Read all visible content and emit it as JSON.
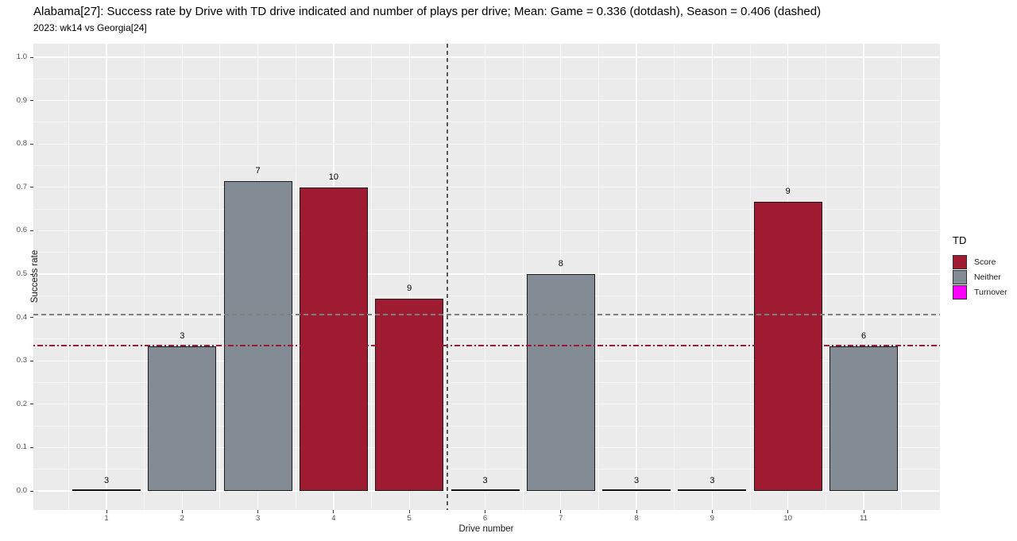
{
  "chart_data": {
    "type": "bar",
    "title": "Alabama[27]: Success rate by Drive with TD drive indicated and number of plays per drive; Mean: Game = 0.336 (dotdash), Season = 0.406 (dashed)",
    "subtitle": "2023: wk14 vs Georgia[24]",
    "xlabel": "Drive number",
    "ylabel": "Success rate",
    "x": [
      1,
      2,
      3,
      4,
      5,
      6,
      7,
      8,
      9,
      10,
      11
    ],
    "values": [
      0,
      0.333,
      0.714,
      0.7,
      0.444,
      0,
      0.5,
      0,
      0,
      0.667,
      0.333
    ],
    "plays_per_drive": [
      3,
      3,
      7,
      10,
      9,
      3,
      8,
      3,
      3,
      9,
      6
    ],
    "td_group": [
      null,
      "Neither",
      "Neither",
      "Score",
      "Score",
      null,
      "Neither",
      null,
      null,
      "Score",
      "Neither"
    ],
    "ylim": [
      0,
      1
    ],
    "y_tick_labels": [
      "0.0",
      "0.1",
      "0.2",
      "0.3",
      "0.4",
      "0.5",
      "0.6",
      "0.7",
      "0.8",
      "0.9",
      "1.0"
    ],
    "x_tick_labels": [
      "1",
      "2",
      "3",
      "4",
      "5",
      "6",
      "7",
      "8",
      "9",
      "10",
      "11"
    ],
    "grid": true,
    "legend_position": "right",
    "ref_lines": [
      {
        "name": "season-mean",
        "orientation": "horizontal",
        "value": 0.406,
        "style": "dashed",
        "color": "#7F7F7F"
      },
      {
        "name": "game-mean",
        "orientation": "horizontal",
        "value": 0.336,
        "style": "dotdash",
        "color": "#9E1B32"
      },
      {
        "name": "half-divider",
        "orientation": "vertical",
        "value": 5.5,
        "style": "dashed",
        "color": "#595959"
      }
    ],
    "colors": {
      "Score": "#9E1B32",
      "Neither": "#838C94",
      "Turnover": "#FF00FF"
    },
    "panel_bg": "#EBEBEB",
    "grid_color": "#FFFFFF"
  },
  "legend": {
    "title": "TD",
    "items": [
      {
        "label": "Score",
        "color": "#9E1B32"
      },
      {
        "label": "Neither",
        "color": "#838C94"
      },
      {
        "label": "Turnover",
        "color": "#FF00FF"
      }
    ]
  }
}
